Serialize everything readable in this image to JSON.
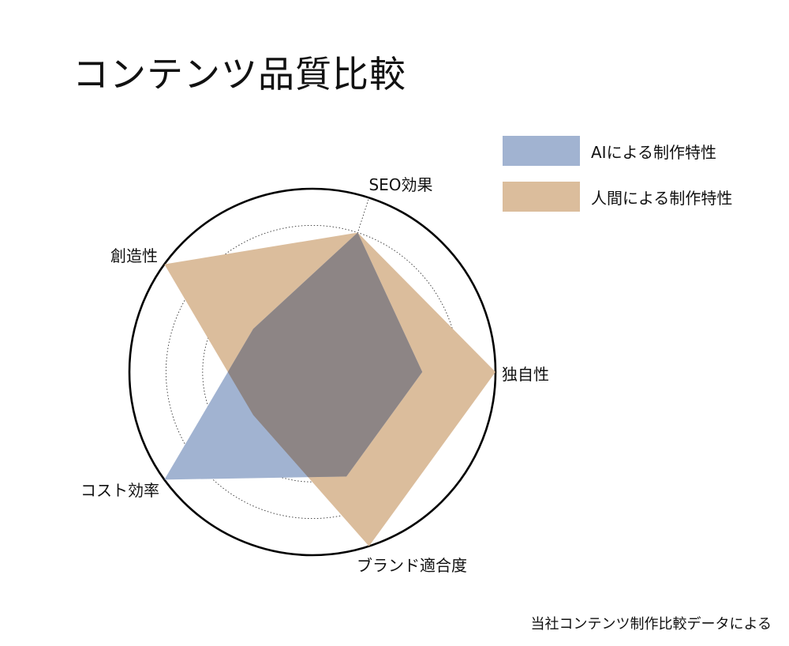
{
  "title": "コンテンツ品質比較",
  "source_note": "当社コンテンツ制作比較データによる",
  "colors": {
    "ai": "#a1b3d1",
    "human": "#dbbd9c",
    "overlap": "#8d8585"
  },
  "chart_data": {
    "type": "radar",
    "title": "コンテンツ品質比較",
    "axes": [
      "独自性",
      "SEO効果",
      "創造性",
      "コスト効率",
      "ブランド適合度"
    ],
    "rlim": [
      0,
      10
    ],
    "rings": [
      2,
      4,
      6,
      8,
      10
    ],
    "grid": true,
    "legend_position": "top-right",
    "series": [
      {
        "name": "AIによる制作特性",
        "values": [
          6,
          8,
          4,
          10,
          6
        ]
      },
      {
        "name": "人間による制作特性",
        "values": [
          10,
          8,
          10,
          4,
          10
        ]
      }
    ]
  }
}
